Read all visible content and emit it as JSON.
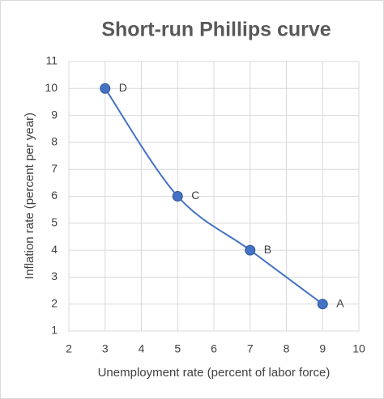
{
  "chart_data": {
    "type": "scatter",
    "title": "Short-run Phillips curve",
    "x_label": "Unemployment rate (percent of labor force)",
    "y_label": "Inflation rate (percent per year)",
    "series": [
      {
        "x": [
          3,
          5,
          7,
          9
        ],
        "values": [
          10,
          6,
          4,
          2
        ],
        "point_labels": [
          "D",
          "C",
          "B",
          "A"
        ],
        "color": "#4472c4"
      }
    ],
    "xlim": [
      2,
      10
    ],
    "xticks": [
      2,
      3,
      4,
      5,
      6,
      7,
      8,
      9,
      10
    ],
    "ylim": [
      1,
      11
    ],
    "yticks": [
      1,
      2,
      3,
      4,
      5,
      6,
      7,
      8,
      9,
      10,
      11
    ],
    "grid": true,
    "smooth": true
  }
}
